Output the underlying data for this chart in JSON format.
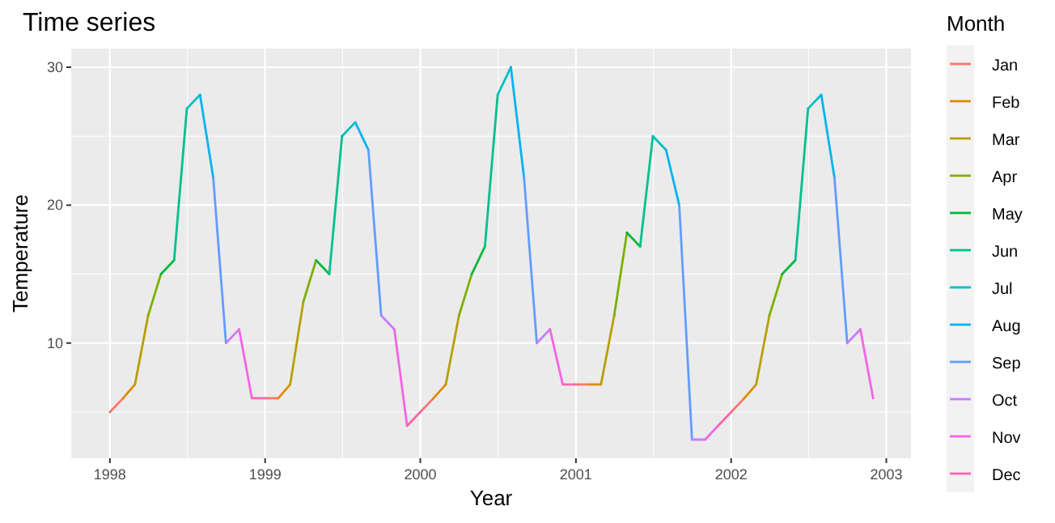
{
  "chart_data": {
    "type": "line",
    "title": "Time series",
    "xlabel": "Year",
    "ylabel": "Temperature",
    "legend_title": "Month",
    "legend": "right",
    "grid": true,
    "x": [
      "1998-01",
      "1998-02",
      "1998-03",
      "1998-04",
      "1998-05",
      "1998-06",
      "1998-07",
      "1998-08",
      "1998-09",
      "1998-10",
      "1998-11",
      "1998-12",
      "1999-01",
      "1999-02",
      "1999-03",
      "1999-04",
      "1999-05",
      "1999-06",
      "1999-07",
      "1999-08",
      "1999-09",
      "1999-10",
      "1999-11",
      "1999-12",
      "2000-01",
      "2000-02",
      "2000-03",
      "2000-04",
      "2000-05",
      "2000-06",
      "2000-07",
      "2000-08",
      "2000-09",
      "2000-10",
      "2000-11",
      "2000-12",
      "2001-01",
      "2001-02",
      "2001-03",
      "2001-04",
      "2001-05",
      "2001-06",
      "2001-07",
      "2001-08",
      "2001-09",
      "2001-10",
      "2001-11",
      "2001-12",
      "2002-01",
      "2002-02",
      "2002-03",
      "2002-04",
      "2002-05",
      "2002-06",
      "2002-07",
      "2002-08",
      "2002-09",
      "2002-10",
      "2002-11",
      "2002-12"
    ],
    "xlim": [
      "1997-10-02",
      "2003-02-28"
    ],
    "xticks": [
      "1998",
      "1999",
      "2000",
      "2001",
      "2002",
      "2003"
    ],
    "ylim": [
      1.65,
      31.35
    ],
    "yticks": [
      10,
      20,
      30
    ],
    "series": [
      {
        "name": "Jan",
        "color": "#f8766d",
        "values": [
          5,
          6,
          null,
          null,
          null,
          null,
          null,
          null,
          null,
          null,
          null,
          null,
          6,
          6,
          null,
          null,
          null,
          null,
          null,
          null,
          null,
          null,
          null,
          null,
          5,
          6,
          null,
          null,
          null,
          null,
          null,
          null,
          null,
          null,
          null,
          null,
          7,
          7,
          null,
          null,
          null,
          null,
          null,
          null,
          null,
          null,
          null,
          null,
          5,
          6,
          null,
          null,
          null,
          null,
          null,
          null,
          null,
          null,
          null,
          null
        ]
      },
      {
        "name": "Feb",
        "color": "#de8c00",
        "values": [
          null,
          6,
          7,
          null,
          null,
          null,
          null,
          null,
          null,
          null,
          null,
          null,
          null,
          6,
          7,
          null,
          null,
          null,
          null,
          null,
          null,
          null,
          null,
          null,
          null,
          6,
          7,
          null,
          null,
          null,
          null,
          null,
          null,
          null,
          null,
          null,
          null,
          7,
          7,
          null,
          null,
          null,
          null,
          null,
          null,
          null,
          null,
          null,
          null,
          6,
          7,
          null,
          null,
          null,
          null,
          null,
          null,
          null,
          null,
          null
        ]
      },
      {
        "name": "Mar",
        "color": "#b79f00",
        "values": [
          null,
          null,
          7,
          12,
          null,
          null,
          null,
          null,
          null,
          null,
          null,
          null,
          null,
          null,
          7,
          13,
          null,
          null,
          null,
          null,
          null,
          null,
          null,
          null,
          null,
          null,
          7,
          12,
          null,
          null,
          null,
          null,
          null,
          null,
          null,
          null,
          null,
          null,
          7,
          12,
          null,
          null,
          null,
          null,
          null,
          null,
          null,
          null,
          null,
          null,
          7,
          12,
          null,
          null,
          null,
          null,
          null,
          null,
          null,
          null
        ]
      },
      {
        "name": "Apr",
        "color": "#7cae00",
        "values": [
          null,
          null,
          null,
          12,
          15,
          null,
          null,
          null,
          null,
          null,
          null,
          null,
          null,
          null,
          null,
          13,
          16,
          null,
          null,
          null,
          null,
          null,
          null,
          null,
          null,
          null,
          null,
          12,
          15,
          null,
          null,
          null,
          null,
          null,
          null,
          null,
          null,
          null,
          null,
          12,
          18,
          null,
          null,
          null,
          null,
          null,
          null,
          null,
          null,
          null,
          null,
          12,
          15,
          null,
          null,
          null,
          null,
          null,
          null,
          null
        ]
      },
      {
        "name": "May",
        "color": "#00ba38",
        "values": [
          null,
          null,
          null,
          null,
          15,
          16,
          null,
          null,
          null,
          null,
          null,
          null,
          null,
          null,
          null,
          null,
          16,
          15,
          null,
          null,
          null,
          null,
          null,
          null,
          null,
          null,
          null,
          null,
          15,
          17,
          null,
          null,
          null,
          null,
          null,
          null,
          null,
          null,
          null,
          null,
          18,
          17,
          null,
          null,
          null,
          null,
          null,
          null,
          null,
          null,
          null,
          null,
          15,
          16,
          null,
          null,
          null,
          null,
          null,
          null
        ]
      },
      {
        "name": "Jun",
        "color": "#00c08b",
        "values": [
          null,
          null,
          null,
          null,
          null,
          16,
          27,
          null,
          null,
          null,
          null,
          null,
          null,
          null,
          null,
          null,
          null,
          15,
          25,
          null,
          null,
          null,
          null,
          null,
          null,
          null,
          null,
          null,
          null,
          17,
          28,
          null,
          null,
          null,
          null,
          null,
          null,
          null,
          null,
          null,
          null,
          17,
          25,
          null,
          null,
          null,
          null,
          null,
          null,
          null,
          null,
          null,
          null,
          16,
          27,
          null,
          null,
          null,
          null,
          null
        ]
      },
      {
        "name": "Jul",
        "color": "#00bfc4",
        "values": [
          null,
          null,
          null,
          null,
          null,
          null,
          27,
          28,
          null,
          null,
          null,
          null,
          null,
          null,
          null,
          null,
          null,
          null,
          25,
          26,
          null,
          null,
          null,
          null,
          null,
          null,
          null,
          null,
          null,
          null,
          28,
          30,
          null,
          null,
          null,
          null,
          null,
          null,
          null,
          null,
          null,
          null,
          25,
          24,
          null,
          null,
          null,
          null,
          null,
          null,
          null,
          null,
          null,
          null,
          27,
          28,
          null,
          null,
          null,
          null
        ]
      },
      {
        "name": "Aug",
        "color": "#00b4f0",
        "values": [
          null,
          null,
          null,
          null,
          null,
          null,
          null,
          28,
          22,
          null,
          null,
          null,
          null,
          null,
          null,
          null,
          null,
          null,
          null,
          26,
          24,
          null,
          null,
          null,
          null,
          null,
          null,
          null,
          null,
          null,
          null,
          30,
          22,
          null,
          null,
          null,
          null,
          null,
          null,
          null,
          null,
          null,
          null,
          24,
          20,
          null,
          null,
          null,
          null,
          null,
          null,
          null,
          null,
          null,
          null,
          28,
          22,
          null,
          null,
          null
        ]
      },
      {
        "name": "Sep",
        "color": "#619cff",
        "values": [
          null,
          null,
          null,
          null,
          null,
          null,
          null,
          null,
          22,
          10,
          null,
          null,
          null,
          null,
          null,
          null,
          null,
          null,
          null,
          null,
          24,
          12,
          null,
          null,
          null,
          null,
          null,
          null,
          null,
          null,
          null,
          null,
          22,
          10,
          null,
          null,
          null,
          null,
          null,
          null,
          null,
          null,
          null,
          null,
          20,
          3,
          null,
          null,
          null,
          null,
          null,
          null,
          null,
          null,
          null,
          null,
          22,
          10,
          null,
          null
        ]
      },
      {
        "name": "Oct",
        "color": "#c77cff",
        "values": [
          null,
          null,
          null,
          null,
          null,
          null,
          null,
          null,
          null,
          10,
          11,
          null,
          null,
          null,
          null,
          null,
          null,
          null,
          null,
          null,
          null,
          12,
          11,
          null,
          null,
          null,
          null,
          null,
          null,
          null,
          null,
          null,
          null,
          10,
          11,
          null,
          null,
          null,
          null,
          null,
          null,
          null,
          null,
          null,
          null,
          3,
          3,
          null,
          null,
          null,
          null,
          null,
          null,
          null,
          null,
          null,
          null,
          10,
          11,
          null
        ]
      },
      {
        "name": "Nov",
        "color": "#f564e3",
        "values": [
          null,
          null,
          null,
          null,
          null,
          null,
          null,
          null,
          null,
          null,
          11,
          6,
          null,
          null,
          null,
          null,
          null,
          null,
          null,
          null,
          null,
          null,
          11,
          4,
          null,
          null,
          null,
          null,
          null,
          null,
          null,
          null,
          null,
          null,
          11,
          7,
          null,
          null,
          null,
          null,
          null,
          null,
          null,
          null,
          null,
          null,
          3,
          4,
          null,
          null,
          null,
          null,
          null,
          null,
          null,
          null,
          null,
          null,
          11,
          6
        ]
      },
      {
        "name": "Dec",
        "color": "#ff64b0",
        "values": [
          null,
          null,
          null,
          null,
          null,
          null,
          null,
          null,
          null,
          null,
          null,
          6,
          6,
          null,
          null,
          null,
          null,
          null,
          null,
          null,
          null,
          null,
          null,
          4,
          5,
          null,
          null,
          null,
          null,
          null,
          null,
          null,
          null,
          null,
          null,
          7,
          7,
          null,
          null,
          null,
          null,
          null,
          null,
          null,
          null,
          null,
          null,
          4,
          5,
          null,
          null,
          null,
          null,
          null,
          null,
          null,
          null,
          null,
          null,
          null
        ]
      }
    ]
  }
}
